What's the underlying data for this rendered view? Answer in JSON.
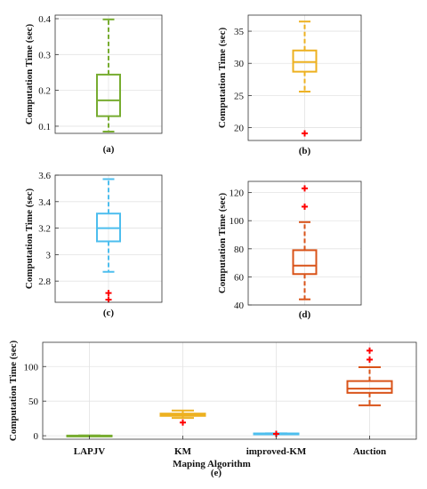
{
  "chart_data": [
    {
      "type": "box",
      "panel_label": "(a)",
      "ylabel": "Computation Time (sec)",
      "ylim": [
        0.08,
        0.41
      ],
      "yticks": [
        0.1,
        0.2,
        0.3,
        0.4
      ],
      "ytick_labels": [
        "0.1",
        "0.2",
        "0.3",
        "0.4"
      ],
      "grid": true,
      "color": "#77AC30",
      "series": [
        {
          "q1": 0.128,
          "median": 0.172,
          "q3": 0.244,
          "whisker_low": 0.085,
          "whisker_high": 0.398,
          "outliers": []
        }
      ]
    },
    {
      "type": "box",
      "panel_label": "(b)",
      "ylabel": "Computation Time (sec)",
      "ylim": [
        18,
        37.5
      ],
      "yticks": [
        20,
        25,
        30,
        35
      ],
      "ytick_labels": [
        "20",
        "25",
        "30",
        "35"
      ],
      "grid": true,
      "color": "#EDB120",
      "series": [
        {
          "q1": 28.7,
          "median": 30.2,
          "q3": 32.0,
          "whisker_low": 25.6,
          "whisker_high": 36.5,
          "outliers": [
            19.1
          ]
        }
      ]
    },
    {
      "type": "box",
      "panel_label": "(c)",
      "ylabel": "Computation Time (sec)",
      "ylim": [
        2.64,
        3.6
      ],
      "yticks": [
        2.8,
        3.0,
        3.2,
        3.4,
        3.6
      ],
      "ytick_labels": [
        "2.8",
        "3",
        "3.2",
        "3.4",
        "3.6"
      ],
      "grid": true,
      "color": "#4DBEEE",
      "series": [
        {
          "q1": 3.1,
          "median": 3.2,
          "q3": 3.31,
          "whisker_low": 2.87,
          "whisker_high": 3.57,
          "outliers": [
            2.71,
            2.66
          ]
        }
      ]
    },
    {
      "type": "box",
      "panel_label": "(d)",
      "ylabel": "Computation Time (sec)",
      "ylim": [
        40,
        128
      ],
      "yticks": [
        40,
        60,
        80,
        100,
        120
      ],
      "ytick_labels": [
        "40",
        "60",
        "80",
        "100",
        "120"
      ],
      "grid": true,
      "color": "#D95319",
      "series": [
        {
          "q1": 62,
          "median": 68,
          "q3": 79,
          "whisker_low": 44,
          "whisker_high": 99,
          "outliers": [
            110,
            123
          ]
        }
      ]
    },
    {
      "type": "box",
      "panel_label": "(e)",
      "ylabel": "Computation Time (sec)",
      "xlabel": "Maping Algorithm",
      "ylim": [
        -5,
        135
      ],
      "yticks": [
        0,
        50,
        100
      ],
      "ytick_labels": [
        "0",
        "50",
        "100"
      ],
      "categories": [
        "LAPJV",
        "KM",
        "improved-KM",
        "Auction"
      ],
      "grid": true,
      "series": [
        {
          "color": "#77AC30",
          "q1": 0.128,
          "median": 0.172,
          "q3": 0.244,
          "whisker_low": 0.085,
          "whisker_high": 0.398,
          "outliers": []
        },
        {
          "color": "#EDB120",
          "q1": 28.7,
          "median": 30.2,
          "q3": 32.0,
          "whisker_low": 25.6,
          "whisker_high": 36.5,
          "outliers": [
            19.1
          ]
        },
        {
          "color": "#4DBEEE",
          "q1": 3.1,
          "median": 3.2,
          "q3": 3.31,
          "whisker_low": 2.87,
          "whisker_high": 3.57,
          "outliers": [
            2.71,
            2.66
          ]
        },
        {
          "color": "#D95319",
          "q1": 62,
          "median": 68,
          "q3": 79,
          "whisker_low": 44,
          "whisker_high": 99,
          "outliers": [
            110,
            123
          ]
        }
      ]
    }
  ],
  "outlier_color": "#FF0000"
}
